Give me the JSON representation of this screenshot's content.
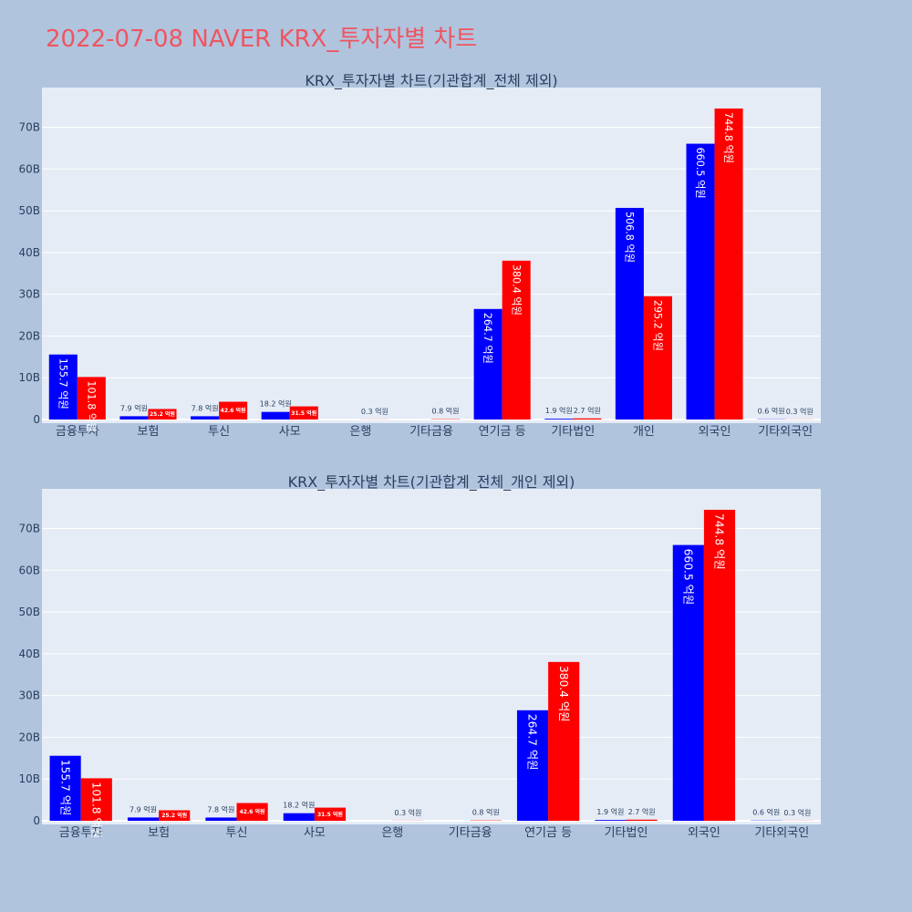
{
  "page": {
    "title": "2022-07-08 NAVER KRX_투자자별 차트"
  },
  "colors": {
    "background": "#b0c4de",
    "plot_bg": "#e5ecf6",
    "grid": "#ffffff",
    "buy": "#0000ff",
    "sell": "#ff0000",
    "title": "#ef5561",
    "text": "#2a3f5f"
  },
  "chart_data": [
    {
      "type": "bar",
      "title": "KRX_투자자별 차트(기관합계_전체 제외)",
      "categories": [
        "금융투자",
        "보험",
        "투신",
        "사모",
        "은행",
        "기타금융",
        "연기금 등",
        "기타법인",
        "개인",
        "외국인",
        "기타외국인"
      ],
      "series": [
        {
          "color": "#0000ff",
          "values": [
            15.57,
            0.79,
            0.78,
            1.82,
            0,
            0,
            26.47,
            0.19,
            50.68,
            66.05,
            0.06
          ],
          "labels": [
            "155.7 억원",
            "7.9 억원",
            "7.8 억원",
            "18.2 억원",
            "",
            "",
            "264.7 억원",
            "1.9 억원",
            "506.8 억원",
            "660.5 억원",
            "0.6 억원"
          ]
        },
        {
          "color": "#ff0000",
          "values": [
            10.18,
            2.52,
            4.26,
            3.15,
            0.03,
            0.08,
            38.04,
            0.27,
            29.52,
            74.48,
            0.03
          ],
          "labels": [
            "101.8 억원",
            "25.2 억원",
            "42.6 억원",
            "31.5 억원",
            "0.3 억원",
            "0.8 억원",
            "380.4 억원",
            "2.7 억원",
            "295.2 억원",
            "744.8 억원",
            "0.3 억원"
          ]
        }
      ],
      "y_tick_labels": [
        "0",
        "10B",
        "20B",
        "30B",
        "40B",
        "50B",
        "60B",
        "70B"
      ],
      "ylim": [
        0,
        79.5
      ],
      "grid": true
    },
    {
      "type": "bar",
      "title": "KRX_투자자별 차트(기관합계_전체_개인 제외)",
      "categories": [
        "금융투자",
        "보험",
        "투신",
        "사모",
        "은행",
        "기타금융",
        "연기금 등",
        "기타법인",
        "외국인",
        "기타외국인"
      ],
      "series": [
        {
          "color": "#0000ff",
          "values": [
            15.57,
            0.79,
            0.78,
            1.82,
            0,
            0,
            26.47,
            0.19,
            66.05,
            0.06
          ],
          "labels": [
            "155.7 억원",
            "7.9 억원",
            "7.8 억원",
            "18.2 억원",
            "",
            "",
            "264.7 억원",
            "1.9 억원",
            "660.5 억원",
            "0.6 억원"
          ]
        },
        {
          "color": "#ff0000",
          "values": [
            10.18,
            2.52,
            4.26,
            3.15,
            0.03,
            0.08,
            38.04,
            0.27,
            74.48,
            0.03
          ],
          "labels": [
            "101.8 억원",
            "25.2 억원",
            "42.6 억원",
            "31.5 억원",
            "0.3 억원",
            "0.8 억원",
            "380.4 억원",
            "2.7 억원",
            "744.8 억원",
            "0.3 억원"
          ]
        }
      ],
      "y_tick_labels": [
        "0",
        "10B",
        "20B",
        "30B",
        "40B",
        "50B",
        "60B",
        "70B"
      ],
      "ylim": [
        0,
        79.5
      ],
      "grid": true
    }
  ]
}
